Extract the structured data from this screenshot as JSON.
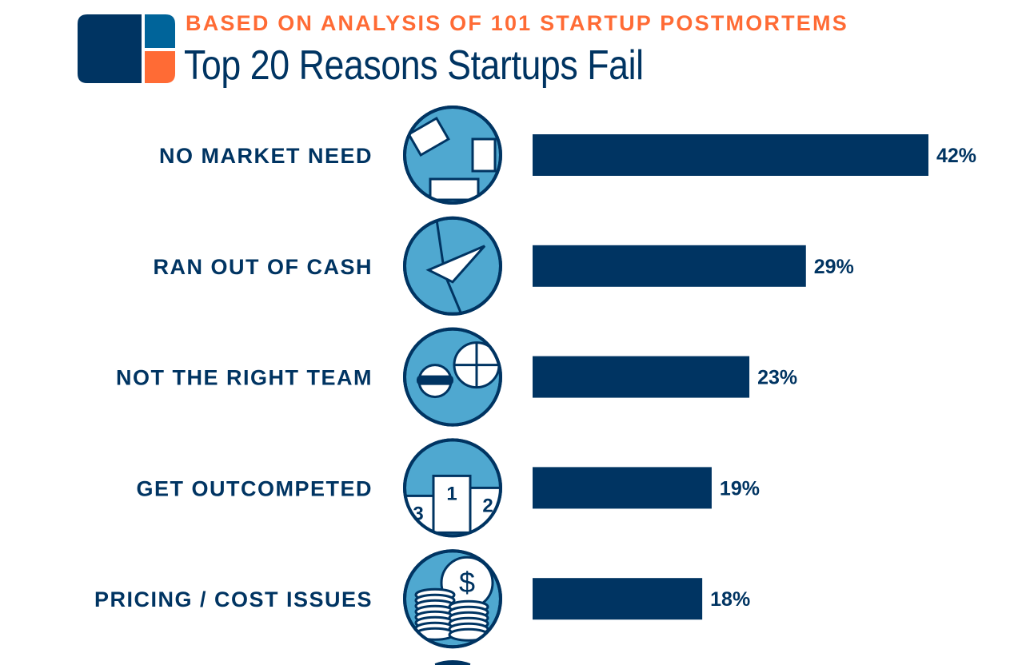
{
  "header": {
    "subtitle": "BASED ON ANALYSIS OF 101 STARTUP POSTMORTEMS",
    "title": "Top 20 Reasons Startups Fail"
  },
  "colors": {
    "navy": "#003462",
    "light_blue": "#4fa8d0",
    "mid_blue": "#00649a",
    "orange": "#ff6b35"
  },
  "chart_data": {
    "type": "bar",
    "orientation": "horizontal",
    "categories": [
      "NO MARKET NEED",
      "RAN OUT OF CASH",
      "NOT THE RIGHT TEAM",
      "GET OUTCOMPETED",
      "PRICING / COST ISSUES"
    ],
    "values": [
      42,
      29,
      23,
      19,
      18
    ],
    "value_labels": [
      "42%",
      "29%",
      "23%",
      "19%",
      "18%"
    ],
    "icons": [
      "puzzle-icon",
      "handshake-icon",
      "team-icon",
      "podium-icon",
      "coins-icon"
    ],
    "podium_labels": [
      "3",
      "1",
      "2"
    ],
    "unit": "%",
    "xlim": [
      0,
      42
    ],
    "grid": false
  }
}
